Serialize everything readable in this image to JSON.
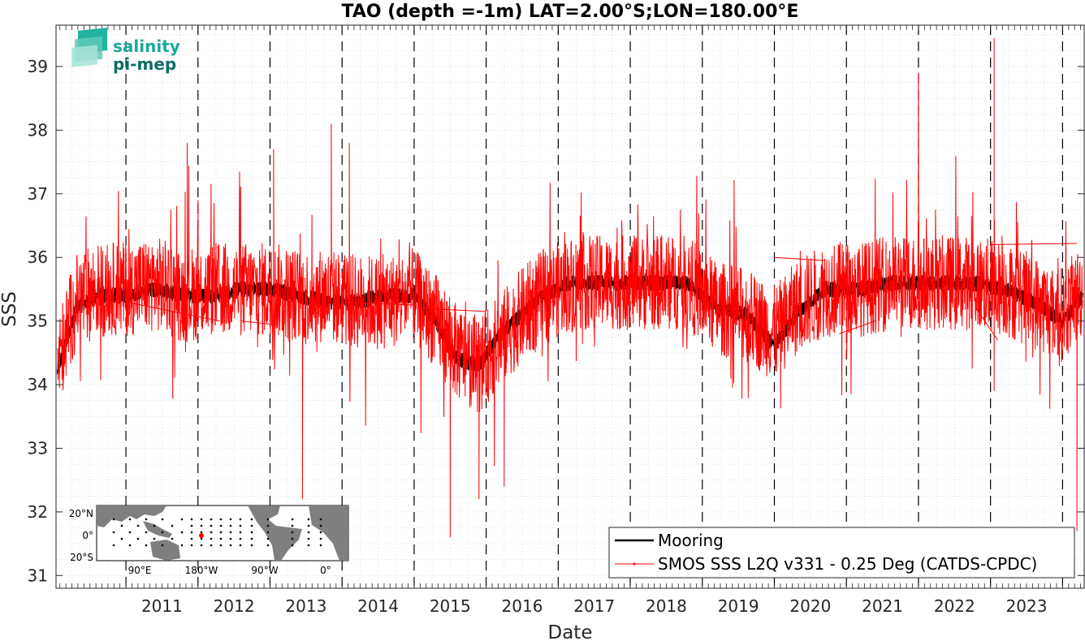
{
  "logo": {
    "line1": "salinity",
    "line2": "pi-mep",
    "color1": "#1aa89a",
    "color2": "#0e6e66"
  },
  "inset_map": {
    "lat_labels": [
      "20°N",
      "0°",
      "20°S"
    ],
    "lon_labels": [
      "90°E",
      "180°W",
      "90°W",
      "0°"
    ]
  },
  "chart_data": {
    "type": "line",
    "title": "TAO (depth =-1m) LAT=2.00°S;LON=180.00°E",
    "xlabel": "Date",
    "ylabel": "SSS",
    "xlim": [
      2010.03,
      2024.3
    ],
    "ylim": [
      30.8,
      39.65
    ],
    "x_tick_labels": [
      "2011",
      "2012",
      "2013",
      "2014",
      "2015",
      "2016",
      "2017",
      "2018",
      "2019",
      "2020",
      "2021",
      "2022",
      "2023"
    ],
    "y_ticks": [
      31,
      32,
      33,
      34,
      35,
      36,
      37,
      38,
      39
    ],
    "grid": true,
    "year_boundary_lines": "dashed black vertical lines at each Jan 1",
    "legend_position": "bottom-right",
    "series": [
      {
        "name": "Mooring",
        "color": "#000000",
        "x": [
          2010.05,
          2010.3,
          2010.6,
          2011.0,
          2011.4,
          2011.8,
          2012.2,
          2012.6,
          2013.0,
          2013.4,
          2013.8,
          2014.2,
          2014.6,
          2015.0,
          2015.3,
          2015.6,
          2015.9,
          2016.2,
          2016.5,
          2016.8,
          2017.2,
          2017.6,
          2018.0,
          2018.4,
          2018.8,
          2019.2,
          2019.6,
          2020.0,
          2020.3,
          2020.7,
          2021.2,
          2021.6,
          2022.0,
          2022.4,
          2022.8,
          2023.2,
          2023.6,
          2024.0,
          2024.28
        ],
        "y": [
          34.2,
          35.2,
          35.4,
          35.4,
          35.5,
          35.4,
          35.4,
          35.5,
          35.5,
          35.4,
          35.3,
          35.3,
          35.4,
          35.4,
          35.0,
          34.4,
          34.3,
          34.8,
          35.1,
          35.4,
          35.6,
          35.6,
          35.6,
          35.6,
          35.6,
          35.2,
          35.1,
          34.6,
          35.1,
          35.5,
          35.5,
          35.6,
          35.6,
          35.6,
          35.6,
          35.5,
          35.3,
          35.0,
          35.4
        ]
      },
      {
        "name": "SMOS SSS L2Q v331 - 0.25 Deg (CATDS-CPDC)",
        "color": "#ff0000",
        "base_x": [
          2010.05,
          2010.3,
          2010.6,
          2011.0,
          2011.4,
          2011.8,
          2012.2,
          2012.6,
          2013.0,
          2013.4,
          2013.8,
          2014.2,
          2014.6,
          2015.0,
          2015.3,
          2015.6,
          2015.9,
          2016.2,
          2016.5,
          2016.8,
          2017.2,
          2017.6,
          2018.0,
          2018.4,
          2018.8,
          2019.2,
          2019.6,
          2020.0,
          2020.3,
          2020.7,
          2021.2,
          2021.6,
          2022.0,
          2022.4,
          2022.8,
          2023.2,
          2023.6,
          2024.0,
          2024.28
        ],
        "base_y": [
          34.3,
          35.3,
          35.5,
          35.5,
          35.6,
          35.4,
          35.5,
          35.5,
          35.5,
          35.4,
          35.4,
          35.3,
          35.3,
          35.4,
          35.0,
          34.5,
          34.3,
          34.7,
          35.1,
          35.4,
          35.6,
          35.6,
          35.6,
          35.6,
          35.6,
          35.2,
          35.1,
          34.8,
          35.2,
          35.5,
          35.5,
          35.6,
          35.6,
          35.6,
          35.6,
          35.5,
          35.3,
          35.1,
          35.5
        ],
        "noise_amplitude": 0.75,
        "spikes": [
          [
            2011.85,
            37.8
          ],
          [
            2012.0,
            36.9
          ],
          [
            2013.05,
            37.7
          ],
          [
            2013.45,
            32.2
          ],
          [
            2013.85,
            38.1
          ],
          [
            2014.1,
            37.8
          ],
          [
            2015.5,
            31.6
          ],
          [
            2015.9,
            32.2
          ],
          [
            2016.25,
            32.4
          ],
          [
            2022.0,
            38.9
          ],
          [
            2023.05,
            39.45
          ],
          [
            2023.05,
            33.9
          ],
          [
            2024.2,
            31.7
          ]
        ]
      }
    ]
  }
}
